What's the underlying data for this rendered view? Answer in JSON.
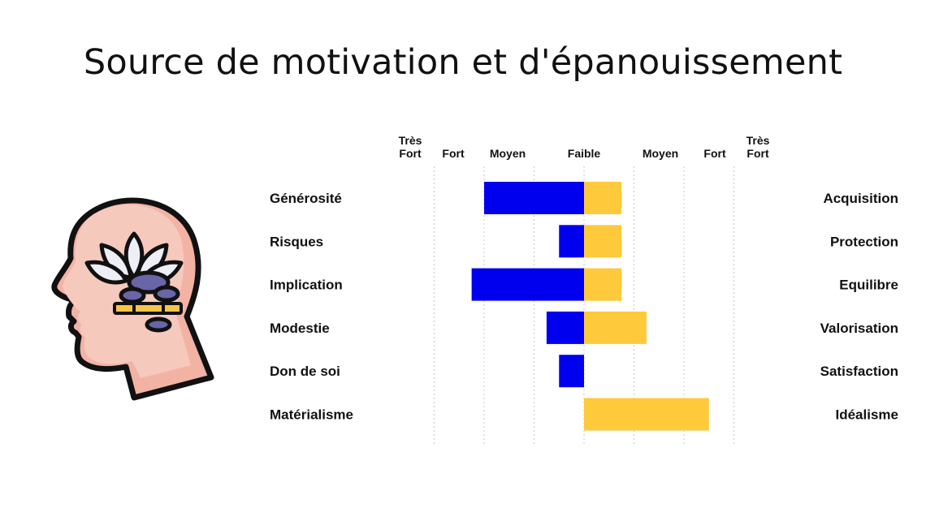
{
  "page": {
    "title": "Source de motivation et d'épanouissement"
  },
  "icons": {
    "illustration": "head-with-lotus-and-stones-icon"
  },
  "chart_data": {
    "type": "bar",
    "orientation": "horizontal-diverging",
    "title": "Source de motivation et d'épanouissement",
    "scale_levels": [
      "Faible",
      "Moyen",
      "Fort",
      "Très Fort"
    ],
    "x_ticks": [
      {
        "value": -3,
        "label": "Très Fort"
      },
      {
        "value": -2,
        "label": "Fort"
      },
      {
        "value": -1,
        "label": "Moyen"
      },
      {
        "value": 0,
        "label": "Faible"
      },
      {
        "value": 1,
        "label": "Moyen"
      },
      {
        "value": 2,
        "label": "Fort"
      },
      {
        "value": 3,
        "label": "Très Fort"
      }
    ],
    "xlim": [
      -4,
      3
    ],
    "grid": true,
    "left_categories": [
      "Générosité",
      "Risques",
      "Implication",
      "Modestie",
      "Don de soi",
      "Matérialisme"
    ],
    "right_categories": [
      "Acquisition",
      "Protection",
      "Equilibre",
      "Valorisation",
      "Satisfaction",
      "Idéalisme"
    ],
    "series": [
      {
        "side": "left",
        "color": "#0000ee",
        "values": [
          2.0,
          0.5,
          2.25,
          0.75,
          0.5,
          0
        ]
      },
      {
        "side": "right",
        "color": "#ffc93c",
        "values": [
          0.75,
          0.75,
          0.75,
          1.25,
          0,
          2.5
        ]
      }
    ]
  }
}
